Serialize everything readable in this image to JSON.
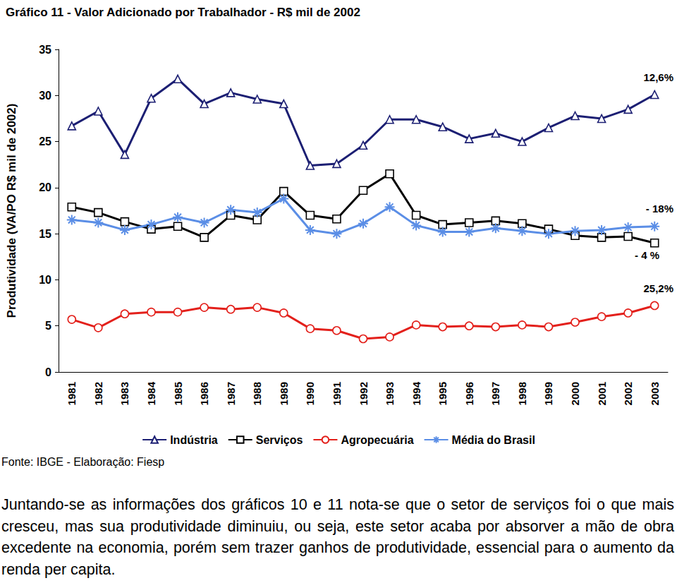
{
  "chart_data": {
    "type": "line",
    "title": "Gráfico 11 - Valor Adicionado por Trabalhador - R$ mil de 2002",
    "y_label": "Produtividade (VA/PO R$ mil de 2002)",
    "source": "Fonte: IBGE - Elaboração: Fiesp",
    "text": "Juntando-se as informações dos gráficos 10 e 11 nota-se que o setor de serviços foi o que mais cresceu, mas sua produtividade diminuiu, ou seja, este setor acaba por absorver a mão de obra excedente na economia, porém sem trazer ganhos de produtividade, essencial para o aumento da renda per capita.",
    "categories": [
      "1981",
      "1982",
      "1983",
      "1984",
      "1985",
      "1986",
      "1987",
      "1988",
      "1989",
      "1990",
      "1991",
      "1992",
      "1993",
      "1994",
      "1995",
      "1996",
      "1997",
      "1998",
      "1999",
      "2000",
      "2001",
      "2002",
      "2003"
    ],
    "series": [
      {
        "name": "Indústria",
        "color": "#1c1f73",
        "marker": "triangle",
        "values": [
          26.7,
          28.3,
          23.6,
          29.7,
          31.8,
          29.1,
          30.3,
          29.6,
          29.1,
          22.4,
          22.6,
          24.6,
          27.4,
          27.4,
          26.6,
          25.3,
          25.9,
          25.0,
          26.5,
          27.8,
          27.5,
          28.5,
          30.1
        ]
      },
      {
        "name": "Serviços",
        "color": "#000000",
        "marker": "square",
        "values": [
          17.9,
          17.3,
          16.3,
          15.5,
          15.8,
          14.6,
          17.0,
          16.5,
          19.6,
          17.0,
          16.6,
          19.7,
          21.5,
          17.0,
          16.0,
          16.2,
          16.4,
          16.1,
          15.5,
          14.8,
          14.6,
          14.7,
          14.0
        ]
      },
      {
        "name": "Agropecuária",
        "color": "#e3201b",
        "marker": "circle",
        "values": [
          5.7,
          4.8,
          6.3,
          6.5,
          6.5,
          7.0,
          6.8,
          7.0,
          6.4,
          4.7,
          4.5,
          3.6,
          3.8,
          5.1,
          4.9,
          5.0,
          4.9,
          5.1,
          4.9,
          5.4,
          6.0,
          6.4,
          7.2
        ]
      },
      {
        "name": "Média do Brasil",
        "color": "#5b8ee6",
        "marker": "asterisk",
        "values": [
          16.5,
          16.2,
          15.4,
          16.0,
          16.8,
          16.2,
          17.6,
          17.3,
          18.8,
          15.4,
          15.0,
          16.1,
          17.9,
          15.9,
          15.2,
          15.2,
          15.6,
          15.3,
          15.0,
          15.3,
          15.4,
          15.7,
          15.8
        ]
      }
    ],
    "annotations": [
      "12,6%",
      "- 18%",
      "- 4 %",
      "25,2%"
    ],
    "ylim": [
      0,
      35
    ],
    "yticks": [
      0,
      5,
      10,
      15,
      20,
      25,
      30,
      35
    ],
    "grid": false,
    "legend": "bottom"
  }
}
